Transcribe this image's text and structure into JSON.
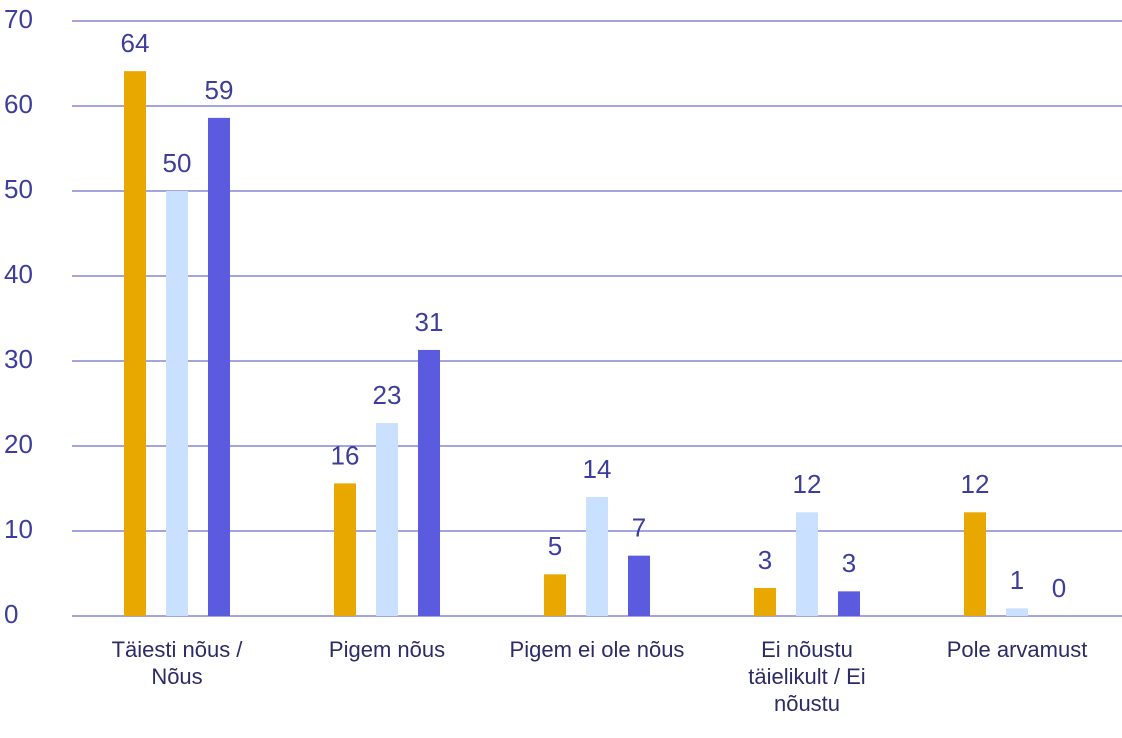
{
  "chart_data": {
    "type": "bar",
    "categories": [
      "Täiesti nõus / Nõus",
      "Pigem nõus",
      "Pigem ei ole nõus",
      "Ei nõustu täielikult / Ei nõustu",
      "Pole arvamust"
    ],
    "series": [
      {
        "color": "#e8a800",
        "values": [
          64.1,
          15.6,
          4.9,
          3.3,
          12.2
        ],
        "value_labels": [
          "64",
          "16",
          "5",
          "3",
          "12"
        ]
      },
      {
        "color": "#c9e0ff",
        "values": [
          50,
          22.7,
          14,
          12.2,
          0.9
        ],
        "value_labels": [
          "50",
          "23",
          "14",
          "12",
          "1"
        ]
      },
      {
        "color": "#5b5be0",
        "values": [
          58.6,
          31.3,
          7.1,
          2.9,
          0
        ],
        "value_labels": [
          "59",
          "31",
          "7",
          "3",
          "0"
        ]
      }
    ],
    "ylim": [
      0,
      70
    ],
    "yticks": [
      0,
      10,
      20,
      30,
      40,
      50,
      60,
      70
    ],
    "grid": true
  }
}
